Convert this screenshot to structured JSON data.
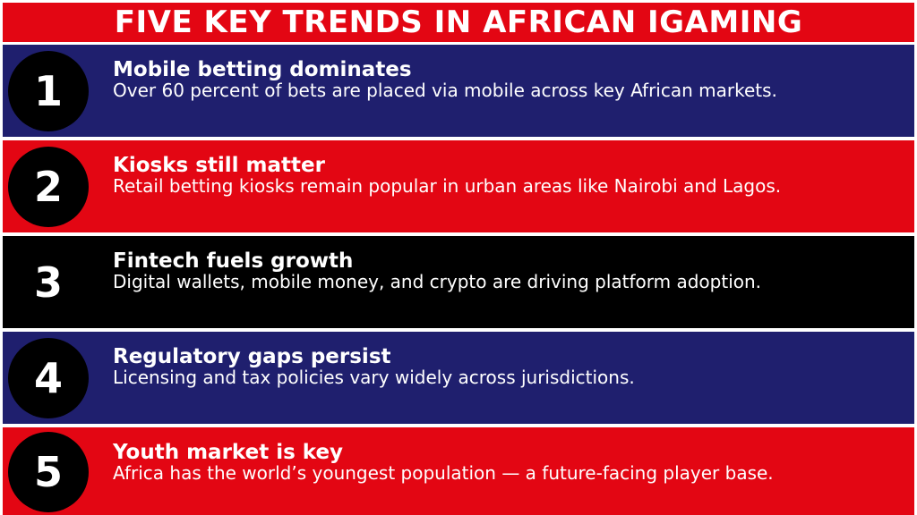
{
  "title": "FIVE KEY TRENDS IN AFRICAN IGAMING",
  "colors": {
    "red": "#e30613",
    "navy": "#1f1f6e",
    "black": "#000000",
    "text": "#ffffff"
  },
  "trends": [
    {
      "number": "1",
      "heading": "Mobile betting dominates",
      "description": "Over 60 percent of bets are placed via mobile across key African markets.",
      "background": "#1f1f6e"
    },
    {
      "number": "2",
      "heading": "Kiosks still matter",
      "description": "Retail betting kiosks remain popular in urban areas like Nairobi and Lagos.",
      "background": "#e30613"
    },
    {
      "number": "3",
      "heading": "Fintech fuels growth",
      "description": "Digital wallets, mobile money, and crypto are driving platform adoption.",
      "background": "#000000"
    },
    {
      "number": "4",
      "heading": "Regulatory gaps persist",
      "description": "Licensing and tax policies vary widely across jurisdictions.",
      "background": "#1f1f6e"
    },
    {
      "number": "5",
      "heading": "Youth market is key",
      "description": "Africa has the world’s youngest population — a future-facing player base.",
      "background": "#e30613"
    }
  ]
}
